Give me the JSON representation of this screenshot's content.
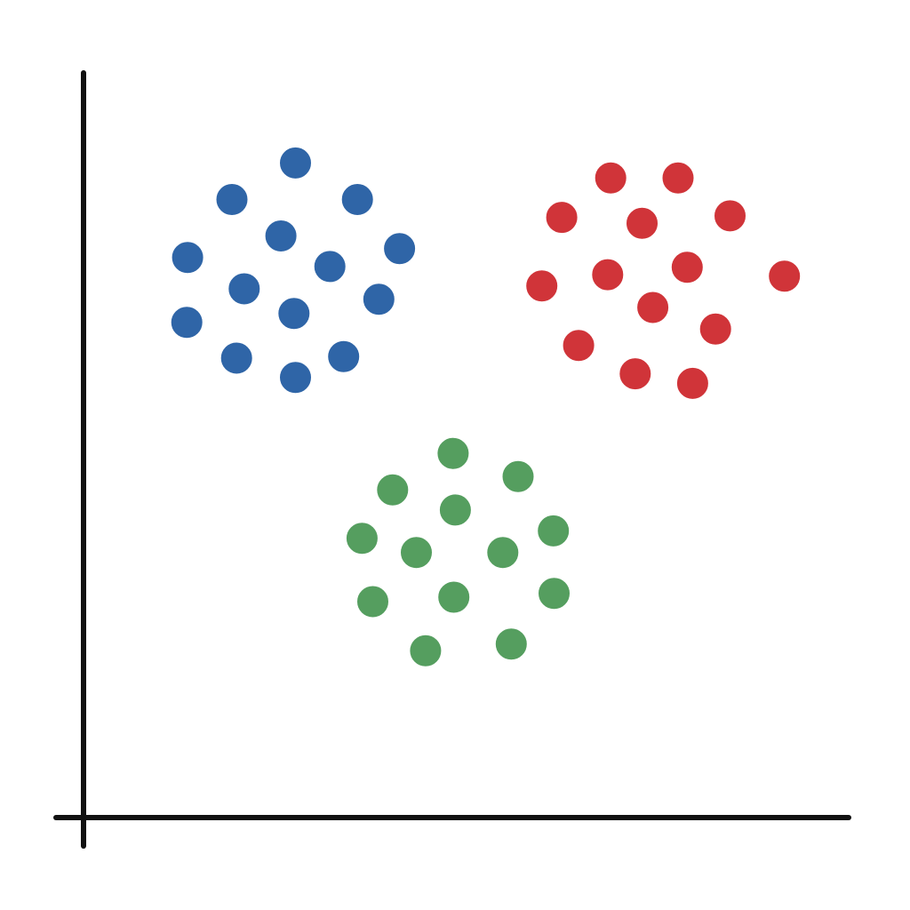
{
  "chart_data": {
    "type": "scatter",
    "title": "",
    "xlabel": "",
    "ylabel": "",
    "xlim": [
      0,
      100
    ],
    "ylim": [
      0,
      100
    ],
    "grid": false,
    "legend": "none",
    "axis_color": "#111111",
    "series": [
      {
        "color": "#2f65a7",
        "points": [
          [
            27.7,
            87.9
          ],
          [
            19.4,
            83.0
          ],
          [
            35.8,
            83.0
          ],
          [
            25.8,
            78.1
          ],
          [
            13.6,
            75.2
          ],
          [
            41.3,
            76.4
          ],
          [
            32.2,
            74.0
          ],
          [
            21.0,
            71.0
          ],
          [
            38.6,
            69.6
          ],
          [
            27.5,
            67.7
          ],
          [
            13.5,
            66.5
          ],
          [
            20.0,
            61.7
          ],
          [
            34.0,
            61.9
          ],
          [
            27.7,
            59.1
          ]
        ]
      },
      {
        "color": "#d03439",
        "points": [
          [
            68.9,
            85.9
          ],
          [
            77.7,
            85.9
          ],
          [
            62.5,
            80.6
          ],
          [
            73.0,
            79.8
          ],
          [
            84.5,
            80.8
          ],
          [
            78.9,
            73.9
          ],
          [
            91.6,
            72.7
          ],
          [
            68.5,
            72.9
          ],
          [
            59.9,
            71.4
          ],
          [
            74.4,
            68.5
          ],
          [
            82.6,
            65.6
          ],
          [
            64.7,
            63.4
          ],
          [
            72.1,
            59.6
          ],
          [
            79.6,
            58.3
          ]
        ]
      },
      {
        "color": "#559e5f",
        "points": [
          [
            48.3,
            48.9
          ],
          [
            56.8,
            45.8
          ],
          [
            40.4,
            44.0
          ],
          [
            48.6,
            41.3
          ],
          [
            61.4,
            38.5
          ],
          [
            36.4,
            37.5
          ],
          [
            43.5,
            35.6
          ],
          [
            54.8,
            35.6
          ],
          [
            37.8,
            29.0
          ],
          [
            48.4,
            29.6
          ],
          [
            61.5,
            30.1
          ],
          [
            44.7,
            22.4
          ],
          [
            55.9,
            23.3
          ]
        ]
      }
    ]
  }
}
